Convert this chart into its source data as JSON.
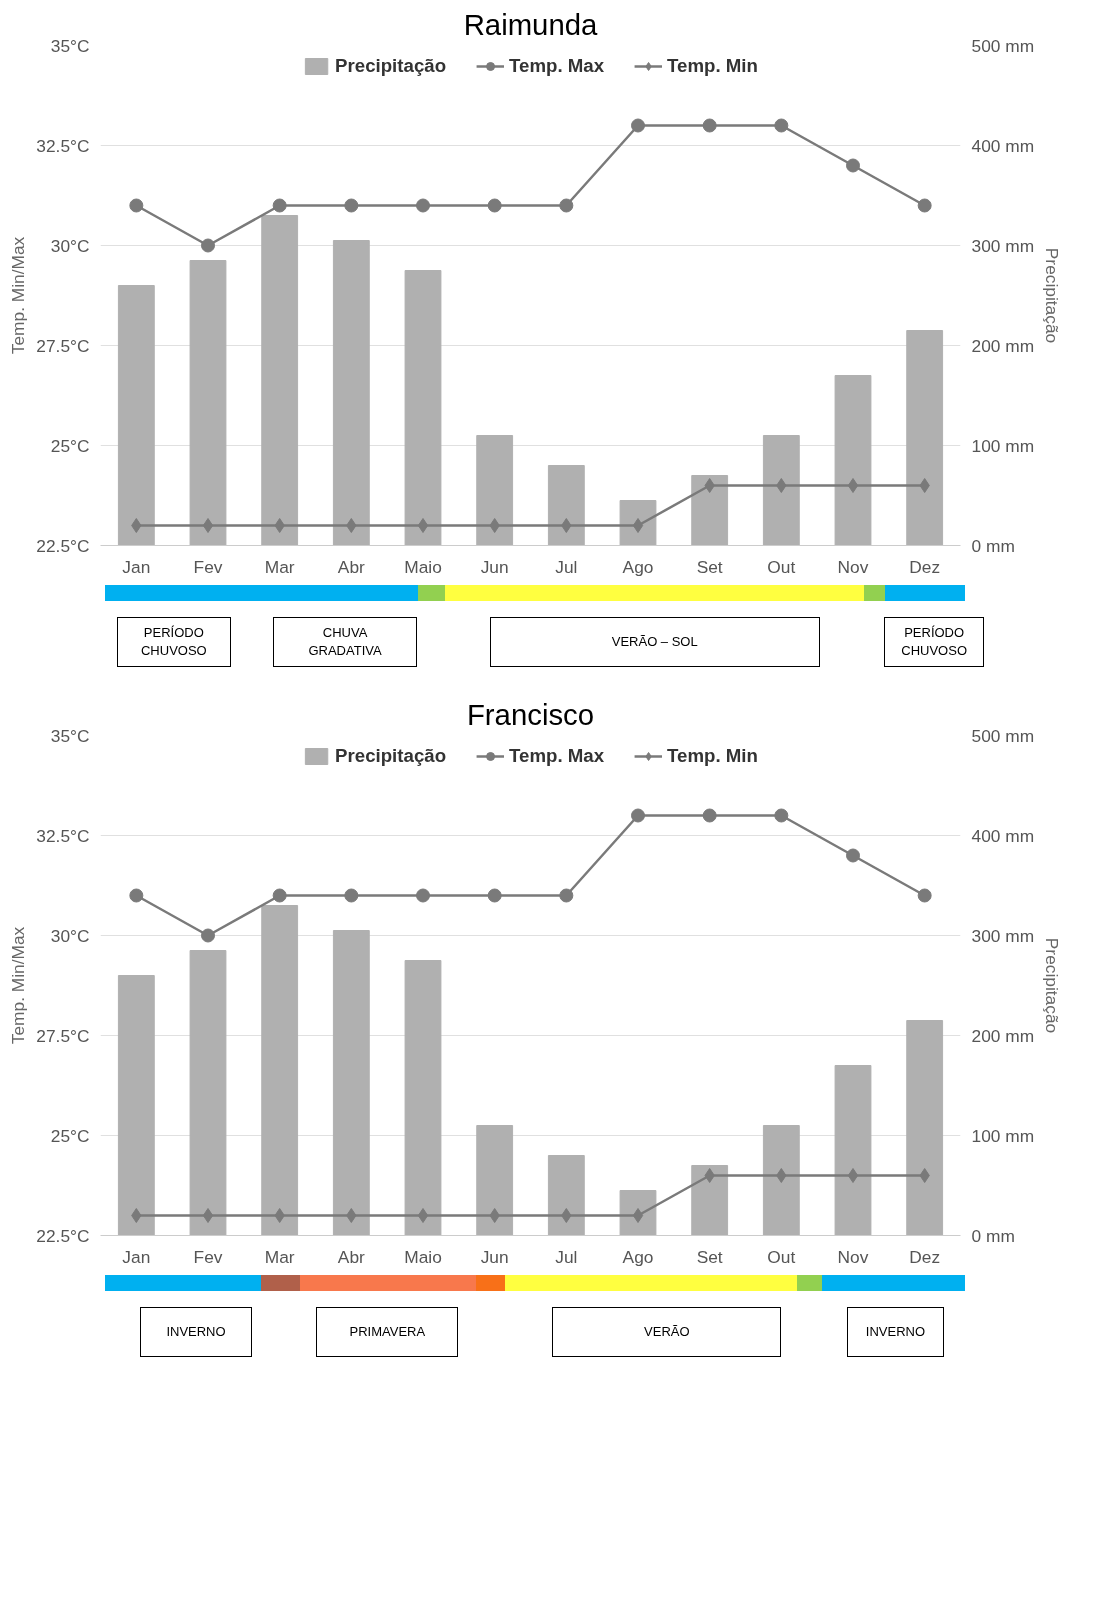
{
  "chart_data": [
    {
      "type": "bar",
      "title": "Raimunda",
      "ylabel": "Temp. Min/Max",
      "y2label": "Precipitação",
      "categories": [
        "Jan",
        "Fev",
        "Mar",
        "Abr",
        "Maio",
        "Jun",
        "Jul",
        "Ago",
        "Set",
        "Out",
        "Nov",
        "Dez"
      ],
      "series": [
        {
          "name": "Precipitação",
          "axis": "y2",
          "color": "#b0b0b0",
          "values": [
            260,
            285,
            330,
            305,
            275,
            110,
            80,
            45,
            70,
            110,
            170,
            215
          ]
        },
        {
          "name": "Temp. Max",
          "type": "line",
          "marker": "circle",
          "color": "#7a7a7a",
          "values": [
            31,
            30,
            31,
            31,
            31,
            31,
            31,
            33,
            33,
            33,
            32,
            31
          ]
        },
        {
          "name": "Temp. Min",
          "type": "line",
          "marker": "diamond",
          "color": "#7a7a7a",
          "values": [
            23,
            23,
            23,
            23,
            23,
            23,
            23,
            23,
            24,
            24,
            24,
            24
          ]
        }
      ],
      "ylim": [
        22.5,
        35
      ],
      "yticks": [
        {
          "value": 22.5,
          "label": "22.5°C"
        },
        {
          "value": 25,
          "label": "25°C"
        },
        {
          "value": 27.5,
          "label": "27.5°C"
        },
        {
          "value": 30,
          "label": "30°C"
        },
        {
          "value": 32.5,
          "label": "32.5°C"
        },
        {
          "value": 35,
          "label": "35°C"
        }
      ],
      "y2lim": [
        0,
        500
      ],
      "y2ticks": [
        {
          "value": 0,
          "label": "0 mm"
        },
        {
          "value": 100,
          "label": "100 mm"
        },
        {
          "value": 200,
          "label": "200 mm"
        },
        {
          "value": 300,
          "label": "300 mm"
        },
        {
          "value": 400,
          "label": "400 mm"
        },
        {
          "value": 500,
          "label": "500 mm"
        }
      ],
      "grid": "y",
      "legend": "top",
      "annotations": [
        "PERÍODO\nCHUVOSO",
        "CHUVA\nGRADATIVA",
        "VERÃO – SOL",
        "PERÍODO\nCHUVOSO"
      ]
    },
    {
      "type": "bar",
      "title": "Francisco",
      "ylabel": "Temp. Min/Max",
      "y2label": "Precipitação",
      "categories": [
        "Jan",
        "Fev",
        "Mar",
        "Abr",
        "Maio",
        "Jun",
        "Jul",
        "Ago",
        "Set",
        "Out",
        "Nov",
        "Dez"
      ],
      "series": [
        {
          "name": "Precipitação",
          "axis": "y2",
          "color": "#b0b0b0",
          "values": [
            260,
            285,
            330,
            305,
            275,
            110,
            80,
            45,
            70,
            110,
            170,
            215
          ]
        },
        {
          "name": "Temp. Max",
          "type": "line",
          "marker": "circle",
          "color": "#7a7a7a",
          "values": [
            31,
            30,
            31,
            31,
            31,
            31,
            31,
            33,
            33,
            33,
            32,
            31
          ]
        },
        {
          "name": "Temp. Min",
          "type": "line",
          "marker": "diamond",
          "color": "#7a7a7a",
          "values": [
            23,
            23,
            23,
            23,
            23,
            23,
            23,
            23,
            24,
            24,
            24,
            24
          ]
        }
      ],
      "ylim": [
        22.5,
        35
      ],
      "yticks": [
        {
          "value": 22.5,
          "label": "22.5°C"
        },
        {
          "value": 25,
          "label": "25°C"
        },
        {
          "value": 27.5,
          "label": "27.5°C"
        },
        {
          "value": 30,
          "label": "30°C"
        },
        {
          "value": 32.5,
          "label": "32.5°C"
        },
        {
          "value": 35,
          "label": "35°C"
        }
      ],
      "y2lim": [
        0,
        500
      ],
      "y2ticks": [
        {
          "value": 0,
          "label": "0 mm"
        },
        {
          "value": 100,
          "label": "100 mm"
        },
        {
          "value": 200,
          "label": "200 mm"
        },
        {
          "value": 300,
          "label": "300 mm"
        },
        {
          "value": 400,
          "label": "400 mm"
        },
        {
          "value": 500,
          "label": "500 mm"
        }
      ],
      "grid": "y",
      "legend": "top",
      "annotations": [
        "INVERNO",
        "PRIMAVERA",
        "VERÃO",
        "INVERNO"
      ]
    }
  ]
}
